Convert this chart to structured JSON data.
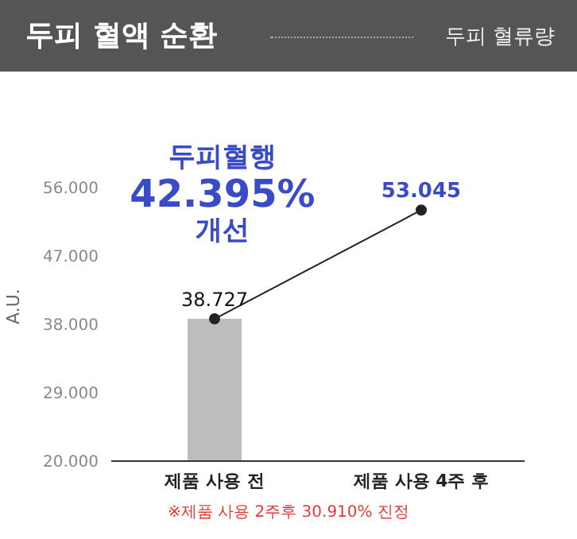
{
  "chart_data": {
    "type": "bar",
    "title": "두피 혈액 순환",
    "subtitle": "두피 혈류량",
    "ylabel": "A.U.",
    "categories": [
      "제품 사용 전",
      "제품 사용 4주 후"
    ],
    "series": [
      {
        "color": "#bdbdbd",
        "values": [
          38.727,
          null
        ]
      },
      {
        "type": "line",
        "color": "#222222",
        "values": [
          38.727,
          53.045
        ],
        "value_labels": [
          "38.727",
          "53.045"
        ]
      }
    ],
    "ylim": [
      20,
      56
    ],
    "yticks": [
      {
        "value": 20,
        "label": "20.000"
      },
      {
        "value": 29,
        "label": "29.000"
      },
      {
        "value": 38,
        "label": "38.000"
      },
      {
        "value": 47,
        "label": "47.000"
      },
      {
        "value": 56,
        "label": "56.000"
      }
    ],
    "marker": "circle",
    "grid": false,
    "legend": false,
    "annotations": [
      "두피혈행\n42.395%\n개선",
      "※제품 사용 2주후 30.910% 진정"
    ]
  }
}
